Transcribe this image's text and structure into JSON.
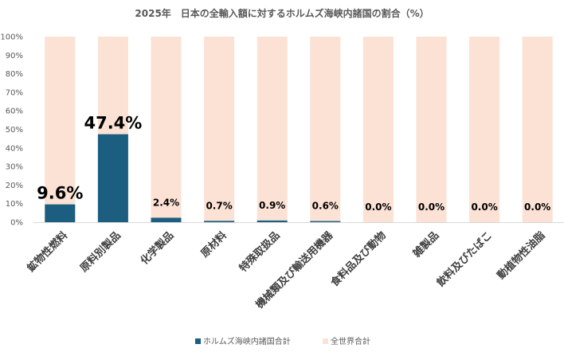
{
  "chart_data": {
    "type": "bar",
    "title": "2025年　日本の全輸入額に対するホルムズ海峡内諸国の割合（%）",
    "categories": [
      "鉱物性燃料",
      "原料別製品",
      "化学製品",
      "原材料",
      "特殊取扱品",
      "機械類及び輸送用機器",
      "食料品及び動物",
      "雑製品",
      "飲料及びたばこ",
      "動植物性油脂"
    ],
    "series": [
      {
        "name": "ホルムズ海峡内諸国合計",
        "values": [
          9.6,
          47.4,
          2.4,
          0.7,
          0.9,
          0.6,
          0.0,
          0.0,
          0.0,
          0.0
        ],
        "color": "#1b5e80"
      },
      {
        "name": "全世界合計",
        "values": [
          100,
          100,
          100,
          100,
          100,
          100,
          100,
          100,
          100,
          100
        ],
        "color": "#fbe2d5"
      }
    ],
    "data_labels": [
      "9.6%",
      "47.4%",
      "2.4%",
      "0.7%",
      "0.9%",
      "0.6%",
      "0.0%",
      "0.0%",
      "0.0%",
      "0.0%"
    ],
    "ylim": [
      0,
      100
    ],
    "yticks": [
      "0%",
      "10%",
      "20%",
      "30%",
      "40%",
      "50%",
      "60%",
      "70%",
      "80%",
      "90%",
      "100%"
    ],
    "legend_position": "bottom",
    "grid": false,
    "xlabel": "",
    "ylabel": ""
  }
}
